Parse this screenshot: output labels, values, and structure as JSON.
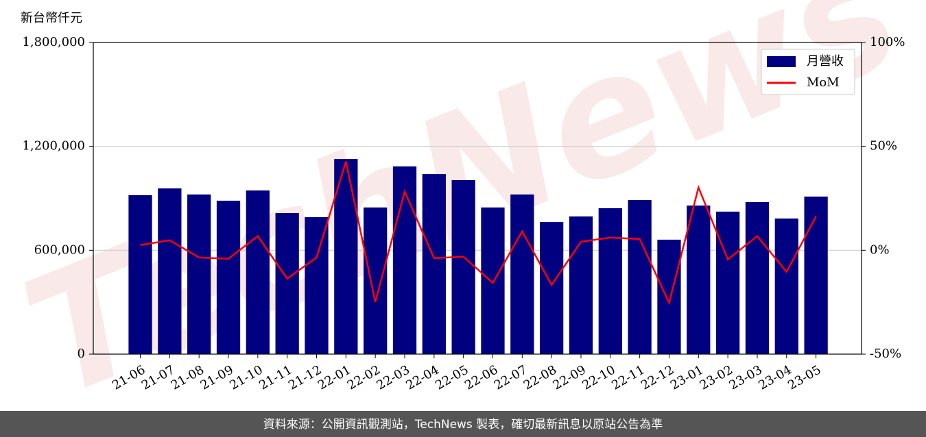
{
  "chart_data": {
    "type": "bar",
    "y_label": "新台幣仟元",
    "watermark": "TechNews",
    "footer": "資料來源：公開資訊觀測站，TechNews 製表，確切最新訊息以原站公告為準",
    "categories": [
      "21-06",
      "21-07",
      "21-08",
      "21-09",
      "21-10",
      "21-11",
      "21-12",
      "22-01",
      "22-02",
      "22-03",
      "22-04",
      "22-05",
      "22-06",
      "22-07",
      "22-08",
      "22-09",
      "22-10",
      "22-11",
      "22-12",
      "23-01",
      "23-02",
      "23-03",
      "23-04",
      "23-05"
    ],
    "series": [
      {
        "name": "月營收",
        "color": "#000080",
        "values": [
          918000,
          957000,
          922000,
          886000,
          945000,
          815000,
          791000,
          1127000,
          847000,
          1084000,
          1040000,
          1005000,
          847000,
          922000,
          763000,
          795000,
          843000,
          890000,
          661000,
          858000,
          823000,
          878000,
          783000,
          910000
        ]
      },
      {
        "name": "MoM",
        "type": "line",
        "axis": "y2",
        "color": "#ff0000",
        "values": [
          2.5,
          4.8,
          -3.5,
          -4.1,
          6.8,
          -13.7,
          -3.5,
          42.7,
          -24.9,
          28.2,
          -3.8,
          -3.1,
          -15.7,
          9.1,
          -16.7,
          4.1,
          6.1,
          5.4,
          -25.3,
          30.2,
          -4.4,
          6.8,
          -10.4,
          16.3
        ]
      }
    ],
    "ylim": [
      0,
      1800000
    ],
    "yticks": [
      0,
      {
        "value": 600000,
        "label": "600,000"
      },
      {
        "value": 1200000,
        "label": "1,200,000"
      },
      {
        "value": 1800000,
        "label": "1,800,000"
      }
    ],
    "y2lim": [
      -50,
      100
    ],
    "y2ticks": [
      {
        "value": -50,
        "label": "-50%"
      },
      {
        "value": 0,
        "label": "0%"
      },
      {
        "value": 50,
        "label": "50%"
      },
      {
        "value": 100,
        "label": "100%"
      }
    ],
    "grid": true,
    "legend": "upper right"
  }
}
